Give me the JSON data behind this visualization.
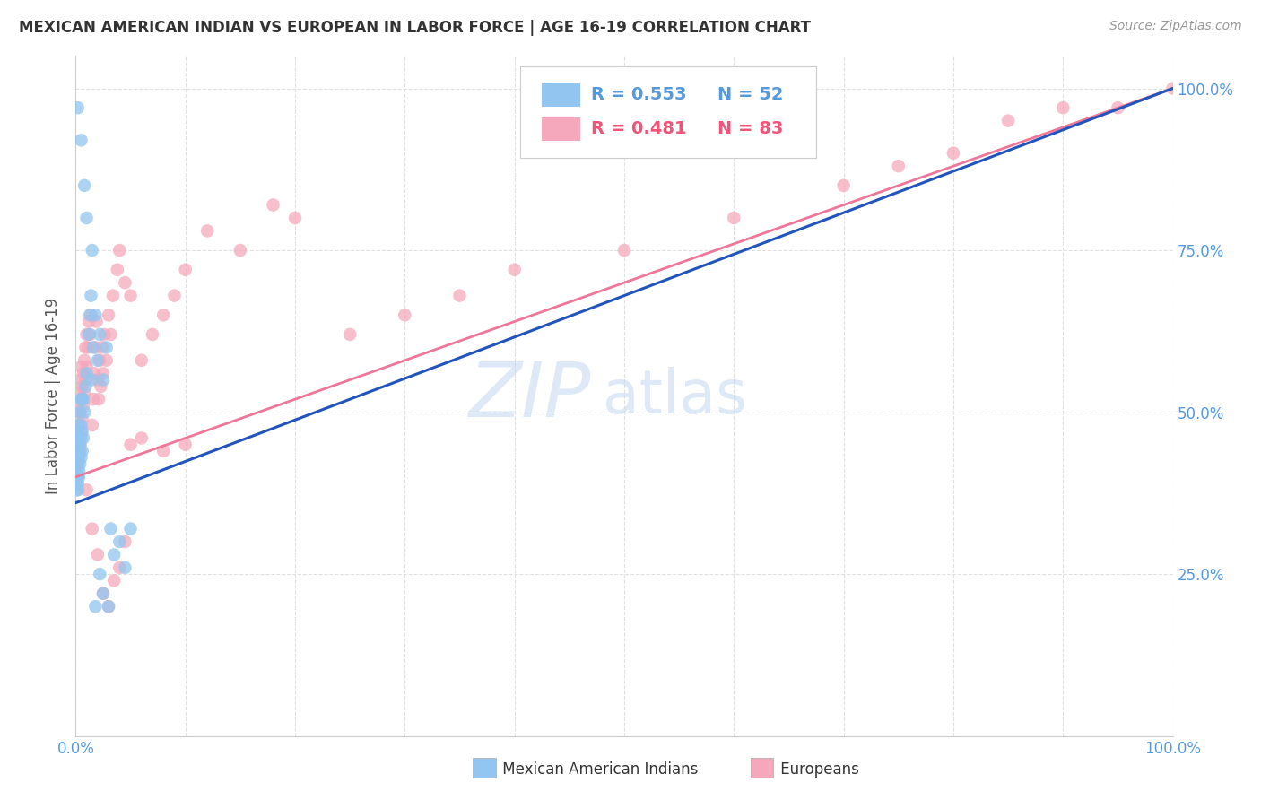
{
  "title": "MEXICAN AMERICAN INDIAN VS EUROPEAN IN LABOR FORCE | AGE 16-19 CORRELATION CHART",
  "source": "Source: ZipAtlas.com",
  "ylabel": "In Labor Force | Age 16-19",
  "xlim": [
    0.0,
    1.0
  ],
  "ylim": [
    0.0,
    1.0
  ],
  "blue_R": 0.553,
  "blue_N": 52,
  "pink_R": 0.481,
  "pink_N": 83,
  "watermark_zip": "ZIP",
  "watermark_atlas": "atlas",
  "blue_color": "#92C5F0",
  "pink_color": "#F5A8BB",
  "blue_line_color": "#2255BB",
  "pink_line_color": "#EE7799",
  "background_color": "#FFFFFF",
  "grid_color": "#DDDDDD",
  "tick_label_color": "#5599DD",
  "ylabel_color": "#555555",
  "title_color": "#333333",
  "source_color": "#999999",
  "legend_label_blue": "Mexican American Indians",
  "legend_label_pink": "Europeans",
  "blue_scatter_x": [
    0.001,
    0.001,
    0.001,
    0.001,
    0.001,
    0.001,
    0.001,
    0.002,
    0.002,
    0.002,
    0.002,
    0.002,
    0.002,
    0.002,
    0.002,
    0.002,
    0.003,
    0.003,
    0.003,
    0.003,
    0.003,
    0.004,
    0.004,
    0.004,
    0.004,
    0.005,
    0.005,
    0.005,
    0.005,
    0.006,
    0.006,
    0.006,
    0.007,
    0.007,
    0.008,
    0.009,
    0.01,
    0.012,
    0.013,
    0.014,
    0.015,
    0.016,
    0.018,
    0.02,
    0.022,
    0.025,
    0.028,
    0.032,
    0.035,
    0.04,
    0.045,
    0.05
  ],
  "blue_scatter_y": [
    0.38,
    0.39,
    0.4,
    0.41,
    0.42,
    0.43,
    0.44,
    0.38,
    0.39,
    0.4,
    0.42,
    0.43,
    0.44,
    0.45,
    0.46,
    0.47,
    0.4,
    0.41,
    0.43,
    0.46,
    0.48,
    0.42,
    0.44,
    0.45,
    0.5,
    0.43,
    0.46,
    0.48,
    0.52,
    0.44,
    0.47,
    0.52,
    0.46,
    0.52,
    0.5,
    0.54,
    0.56,
    0.62,
    0.65,
    0.68,
    0.55,
    0.6,
    0.65,
    0.58,
    0.62,
    0.55,
    0.6,
    0.32,
    0.28,
    0.3,
    0.26,
    0.32
  ],
  "blue_outliers_x": [
    0.002,
    0.005,
    0.008,
    0.01,
    0.015,
    0.018,
    0.022,
    0.025,
    0.03
  ],
  "blue_outliers_y": [
    0.97,
    0.92,
    0.85,
    0.8,
    0.75,
    0.2,
    0.25,
    0.22,
    0.2
  ],
  "pink_scatter_x": [
    0.001,
    0.001,
    0.001,
    0.002,
    0.002,
    0.002,
    0.003,
    0.003,
    0.003,
    0.004,
    0.004,
    0.004,
    0.005,
    0.005,
    0.005,
    0.006,
    0.006,
    0.007,
    0.007,
    0.008,
    0.008,
    0.009,
    0.009,
    0.01,
    0.01,
    0.011,
    0.012,
    0.013,
    0.014,
    0.015,
    0.016,
    0.017,
    0.018,
    0.019,
    0.02,
    0.021,
    0.022,
    0.023,
    0.024,
    0.025,
    0.026,
    0.028,
    0.03,
    0.032,
    0.034,
    0.038,
    0.04,
    0.045,
    0.05,
    0.06,
    0.07,
    0.08,
    0.09,
    0.1,
    0.12,
    0.15,
    0.18,
    0.2,
    0.25,
    0.3,
    0.35,
    0.4,
    0.5,
    0.6,
    0.7,
    0.75,
    0.8,
    0.85,
    0.9,
    0.95,
    1.0,
    0.01,
    0.015,
    0.02,
    0.025,
    0.03,
    0.035,
    0.04,
    0.045,
    0.05,
    0.06,
    0.08,
    0.1
  ],
  "pink_scatter_y": [
    0.42,
    0.46,
    0.5,
    0.43,
    0.47,
    0.51,
    0.44,
    0.48,
    0.53,
    0.45,
    0.5,
    0.55,
    0.47,
    0.52,
    0.57,
    0.49,
    0.54,
    0.51,
    0.56,
    0.53,
    0.58,
    0.55,
    0.6,
    0.57,
    0.62,
    0.6,
    0.64,
    0.62,
    0.65,
    0.48,
    0.52,
    0.56,
    0.6,
    0.64,
    0.55,
    0.52,
    0.58,
    0.54,
    0.6,
    0.56,
    0.62,
    0.58,
    0.65,
    0.62,
    0.68,
    0.72,
    0.75,
    0.7,
    0.68,
    0.58,
    0.62,
    0.65,
    0.68,
    0.72,
    0.78,
    0.75,
    0.82,
    0.8,
    0.62,
    0.65,
    0.68,
    0.72,
    0.75,
    0.8,
    0.85,
    0.88,
    0.9,
    0.95,
    0.97,
    0.97,
    1.0,
    0.38,
    0.32,
    0.28,
    0.22,
    0.2,
    0.24,
    0.26,
    0.3,
    0.45,
    0.46,
    0.44,
    0.45
  ],
  "blue_line_x0": 0.0,
  "blue_line_y0": 0.36,
  "blue_line_x1": 1.0,
  "blue_line_y1": 1.0,
  "pink_line_x0": 0.0,
  "pink_line_y0": 0.4,
  "pink_line_x1": 1.0,
  "pink_line_y1": 1.0
}
